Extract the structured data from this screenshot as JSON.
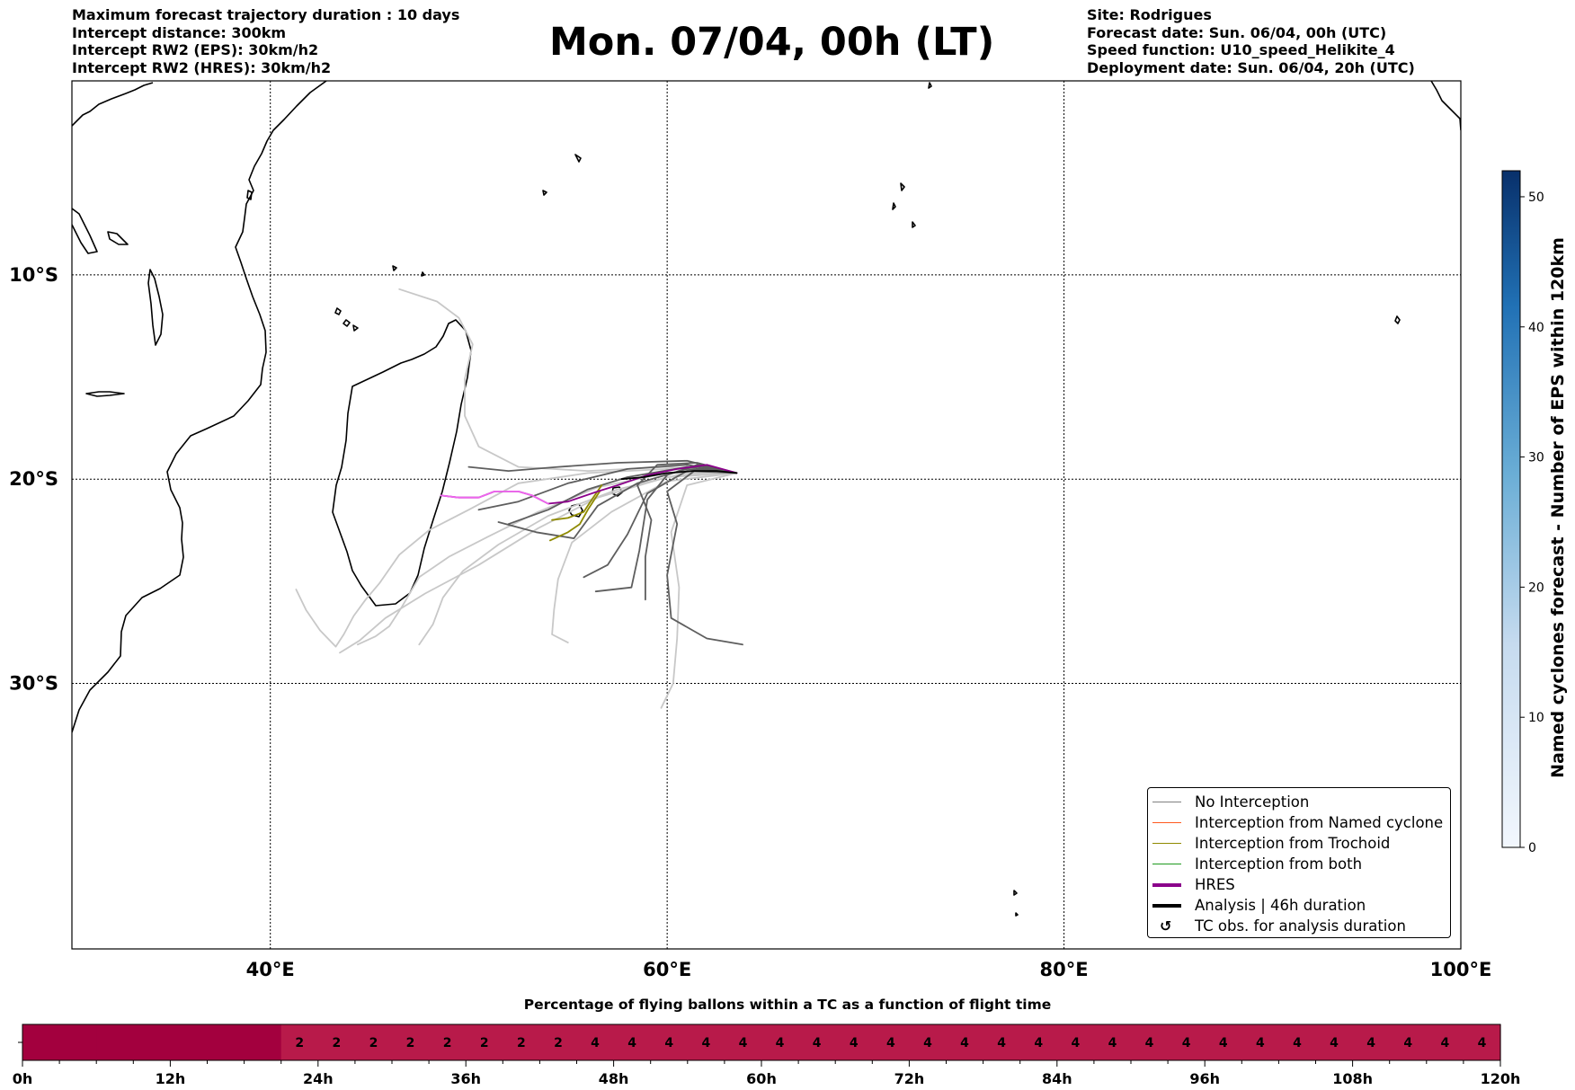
{
  "header": {
    "left_lines": [
      "Maximum forecast trajectory duration : 10 days",
      "Intercept distance: 300km",
      "Intercept RW2 (EPS):  30km/h2",
      "Intercept RW2 (HRES): 30km/h2"
    ],
    "title": "Mon. 07/04, 00h (LT)",
    "right_lines": [
      "Site: Rodrigues",
      "Forecast date: Sun. 06/04, 00h (UTC)",
      "Speed function: U10_speed_Helikite_4",
      "Deployment date: Sun. 06/04, 20h (UTC)"
    ]
  },
  "legend": {
    "items": [
      {
        "label": "No Interception",
        "color": "#808080",
        "style": "thin"
      },
      {
        "label": "Interception from Named cyclone",
        "color": "#ff5a1f",
        "style": "thin"
      },
      {
        "label": "Interception from Trochoid",
        "color": "#8f8a00",
        "style": "thin"
      },
      {
        "label": "Interception from both",
        "color": "#1e9a1e",
        "style": "thin"
      },
      {
        "label": "HRES",
        "color": "#8b008b",
        "style": "thick"
      },
      {
        "label": "Analysis | 46h duration",
        "color": "#000000",
        "style": "thick"
      },
      {
        "label": "TC obs. for analysis duration",
        "color": "#000000",
        "style": "symbol",
        "symbol": "↺"
      }
    ]
  },
  "colorbar": {
    "label": "Named cyclones forecast - Number of EPS within 120km",
    "ticks": [
      "0",
      "10",
      "20",
      "30",
      "40",
      "50"
    ],
    "colors": {
      "low": "#f2f7fd",
      "mid": "#5ba3d0",
      "high": "#08306b"
    }
  },
  "bottom": {
    "title": "Percentage of flying ballons within a TC as a function of flight time",
    "colors": {
      "dark": "#a3003e",
      "light": "#b81a4a"
    }
  },
  "chart_data": [
    {
      "type": "line",
      "title": "Mon. 07/04, 00h (LT)",
      "x_ticks": [
        "40°E",
        "60°E",
        "80°E",
        "100°E"
      ],
      "y_ticks": [
        "10°S",
        "20°S",
        "30°S"
      ],
      "xlim": [
        30,
        100
      ],
      "ylim": [
        -43,
        -0.5
      ],
      "grid": true,
      "legend_position": "bottom-right",
      "series": [
        {
          "name": "HRES",
          "color": "#8b008b",
          "points": [
            [
              63.5,
              -19.7
            ],
            [
              62,
              -19.3
            ],
            [
              60.5,
              -19.5
            ],
            [
              59,
              -19.8
            ],
            [
              57.5,
              -20.3
            ],
            [
              56.5,
              -20.6
            ],
            [
              55,
              -21.1
            ],
            [
              54,
              -21.2
            ],
            [
              53.2,
              -20.8
            ],
            [
              52.5,
              -20.6
            ],
            [
              51.3,
              -20.6
            ],
            [
              50.5,
              -20.9
            ],
            [
              49.5,
              -20.9
            ],
            [
              48.6,
              -20.8
            ]
          ]
        },
        {
          "name": "Analysis | 46h duration",
          "color": "#000000",
          "points": [
            [
              63.5,
              -19.7
            ],
            [
              62.5,
              -19.6
            ],
            [
              61.3,
              -19.6
            ],
            [
              60,
              -19.7
            ],
            [
              58.8,
              -19.9
            ],
            [
              57.7,
              -20
            ]
          ]
        },
        {
          "name": "Interception from Trochoid",
          "color": "#8f8a00",
          "points": [
            [
              56.7,
              -20.3
            ],
            [
              56.2,
              -21
            ],
            [
              55.8,
              -21.6
            ],
            [
              55,
              -21.9
            ],
            [
              54.2,
              -22
            ]
          ]
        },
        {
          "name": "Interception from Trochoid",
          "color": "#8f8a00",
          "points": [
            [
              56.6,
              -20.6
            ],
            [
              56,
              -21.5
            ],
            [
              55.6,
              -22.2
            ],
            [
              55,
              -22.6
            ],
            [
              54.1,
              -23
            ]
          ]
        },
        {
          "name": "No Interception",
          "color": "#5e5e5e",
          "points": [
            [
              63.5,
              -19.7
            ],
            [
              61,
              -19.1
            ],
            [
              57.5,
              -19.2
            ],
            [
              54.5,
              -19.4
            ],
            [
              52,
              -19.6
            ],
            [
              50,
              -19.4
            ]
          ]
        },
        {
          "name": "No Interception",
          "color": "#5e5e5e",
          "points": [
            [
              63.5,
              -19.7
            ],
            [
              61,
              -19.4
            ],
            [
              58,
              -19.9
            ],
            [
              56,
              -20.5
            ],
            [
              54,
              -21.5
            ],
            [
              52,
              -22.2
            ]
          ]
        },
        {
          "name": "No Interception",
          "color": "#5e5e5e",
          "points": [
            [
              63.5,
              -19.7
            ],
            [
              61,
              -19.6
            ],
            [
              59,
              -20.7
            ],
            [
              58,
              -22.7
            ],
            [
              57,
              -24.2
            ],
            [
              55.8,
              -24.8
            ]
          ]
        },
        {
          "name": "No Interception",
          "color": "#5e5e5e",
          "points": [
            [
              63.5,
              -19.7
            ],
            [
              61.5,
              -19.3
            ],
            [
              60,
              -19.8
            ],
            [
              59,
              -21
            ],
            [
              58.6,
              -23.5
            ],
            [
              58.2,
              -25.3
            ],
            [
              56.4,
              -25.5
            ]
          ]
        },
        {
          "name": "No Interception",
          "color": "#5e5e5e",
          "points": [
            [
              63.5,
              -19.7
            ],
            [
              61.5,
              -19.5
            ],
            [
              60,
              -20.6
            ],
            [
              60.5,
              -22.2
            ],
            [
              60,
              -24.7
            ],
            [
              60.2,
              -26.8
            ],
            [
              62,
              -27.8
            ],
            [
              63.8,
              -28.1
            ]
          ]
        },
        {
          "name": "No Interception",
          "color": "#5e5e5e",
          "points": [
            [
              63.5,
              -19.7
            ],
            [
              61,
              -19.3
            ],
            [
              58,
              -19.5
            ],
            [
              55,
              -20.2
            ],
            [
              52.5,
              -21.1
            ],
            [
              50.5,
              -21.5
            ]
          ]
        },
        {
          "name": "No Interception",
          "color": "#5e5e5e",
          "points": [
            [
              63.5,
              -19.7
            ],
            [
              61.5,
              -19.2
            ],
            [
              59.5,
              -19.3
            ],
            [
              58.5,
              -20.3
            ],
            [
              59.2,
              -22
            ],
            [
              58.9,
              -23.8
            ],
            [
              58.9,
              -25.9
            ]
          ]
        },
        {
          "name": "No Interception",
          "color": "#5e5e5e",
          "points": [
            [
              63.5,
              -19.7
            ],
            [
              61,
              -19.5
            ],
            [
              58.5,
              -20.2
            ],
            [
              56.5,
              -21.3
            ],
            [
              55.3,
              -22.9
            ],
            [
              53.4,
              -22.6
            ],
            [
              51.5,
              -22.1
            ]
          ]
        },
        {
          "name": "No Interception",
          "color": "#c8c8c8",
          "points": [
            [
              63.5,
              -19.7
            ],
            [
              60,
              -19.5
            ],
            [
              56,
              -19.7
            ],
            [
              52.5,
              -20.2
            ],
            [
              50,
              -21.5
            ],
            [
              48,
              -22.5
            ],
            [
              46.5,
              -23.7
            ],
            [
              45.5,
              -25.1
            ],
            [
              44.8,
              -25.9
            ],
            [
              44.2,
              -26.7
            ],
            [
              43.7,
              -27.6
            ],
            [
              43.3,
              -28.2
            ],
            [
              42.5,
              -27.4
            ],
            [
              41.8,
              -26.4
            ],
            [
              41.3,
              -25.4
            ]
          ]
        },
        {
          "name": "No Interception",
          "color": "#c8c8c8",
          "points": [
            [
              63.5,
              -19.7
            ],
            [
              60,
              -19.7
            ],
            [
              56.5,
              -20.4
            ],
            [
              53.5,
              -21.6
            ],
            [
              51,
              -22.8
            ],
            [
              49,
              -23.8
            ],
            [
              47.5,
              -24.8
            ],
            [
              46.6,
              -26.3
            ],
            [
              46,
              -27.2
            ],
            [
              45.3,
              -27.7
            ],
            [
              44.4,
              -28.1
            ]
          ]
        },
        {
          "name": "No Interception",
          "color": "#c8c8c8",
          "points": [
            [
              63.5,
              -19.7
            ],
            [
              60,
              -19.4
            ],
            [
              56,
              -19.6
            ],
            [
              52.5,
              -19.4
            ],
            [
              50.5,
              -18.4
            ],
            [
              49.8,
              -16.9
            ],
            [
              49.8,
              -15.1
            ],
            [
              50.2,
              -13.4
            ],
            [
              49.5,
              -12.1
            ],
            [
              48.4,
              -11.3
            ],
            [
              46.5,
              -10.7
            ]
          ]
        },
        {
          "name": "No Interception",
          "color": "#c8c8c8",
          "points": [
            [
              63.5,
              -19.7
            ],
            [
              60.5,
              -19.8
            ],
            [
              57.5,
              -20.5
            ],
            [
              54,
              -21.8
            ],
            [
              51.5,
              -23.2
            ],
            [
              49.7,
              -24.5
            ],
            [
              48.7,
              -25.8
            ],
            [
              48.2,
              -27.1
            ],
            [
              47.5,
              -28.1
            ]
          ]
        },
        {
          "name": "No Interception",
          "color": "#c8c8c8",
          "points": [
            [
              63.5,
              -19.7
            ],
            [
              60,
              -20.1
            ],
            [
              57.2,
              -21.6
            ],
            [
              55.2,
              -23.1
            ],
            [
              54.5,
              -24.9
            ],
            [
              54.3,
              -26.4
            ],
            [
              54.2,
              -27.6
            ],
            [
              55,
              -28
            ]
          ]
        },
        {
          "name": "No Interception",
          "color": "#c8c8c8",
          "points": [
            [
              63.5,
              -19.7
            ],
            [
              61,
              -20.3
            ],
            [
              60.2,
              -22.6
            ],
            [
              60.6,
              -25.3
            ],
            [
              60.5,
              -27.8
            ],
            [
              60.3,
              -30
            ],
            [
              59.7,
              -31.2
            ]
          ]
        },
        {
          "name": "No Interception",
          "color": "#c8c8c8",
          "points": [
            [
              63.5,
              -19.7
            ],
            [
              60,
              -19.9
            ],
            [
              56.5,
              -20.9
            ],
            [
              53.5,
              -22.4
            ],
            [
              50.5,
              -24.2
            ],
            [
              47.8,
              -25.6
            ],
            [
              45.8,
              -26.8
            ],
            [
              44.5,
              -27.9
            ],
            [
              43.5,
              -28.5
            ]
          ]
        }
      ]
    },
    {
      "type": "heatmap",
      "title": "Percentage of flying ballons within a TC as a function of flight time",
      "x_tick_labels": [
        "0h",
        "12h",
        "24h",
        "36h",
        "48h",
        "60h",
        "72h",
        "84h",
        "96h",
        "108h",
        "120h"
      ],
      "xlim": [
        0,
        120
      ],
      "bin_hours": 3,
      "values": [
        0,
        0,
        0,
        0,
        0,
        0,
        0,
        2,
        2,
        2,
        2,
        2,
        2,
        2,
        2,
        4,
        4,
        4,
        4,
        4,
        4,
        4,
        4,
        4,
        4,
        4,
        4,
        4,
        4,
        4,
        4,
        4,
        4,
        4,
        4,
        4,
        4,
        4,
        4,
        4
      ]
    }
  ]
}
